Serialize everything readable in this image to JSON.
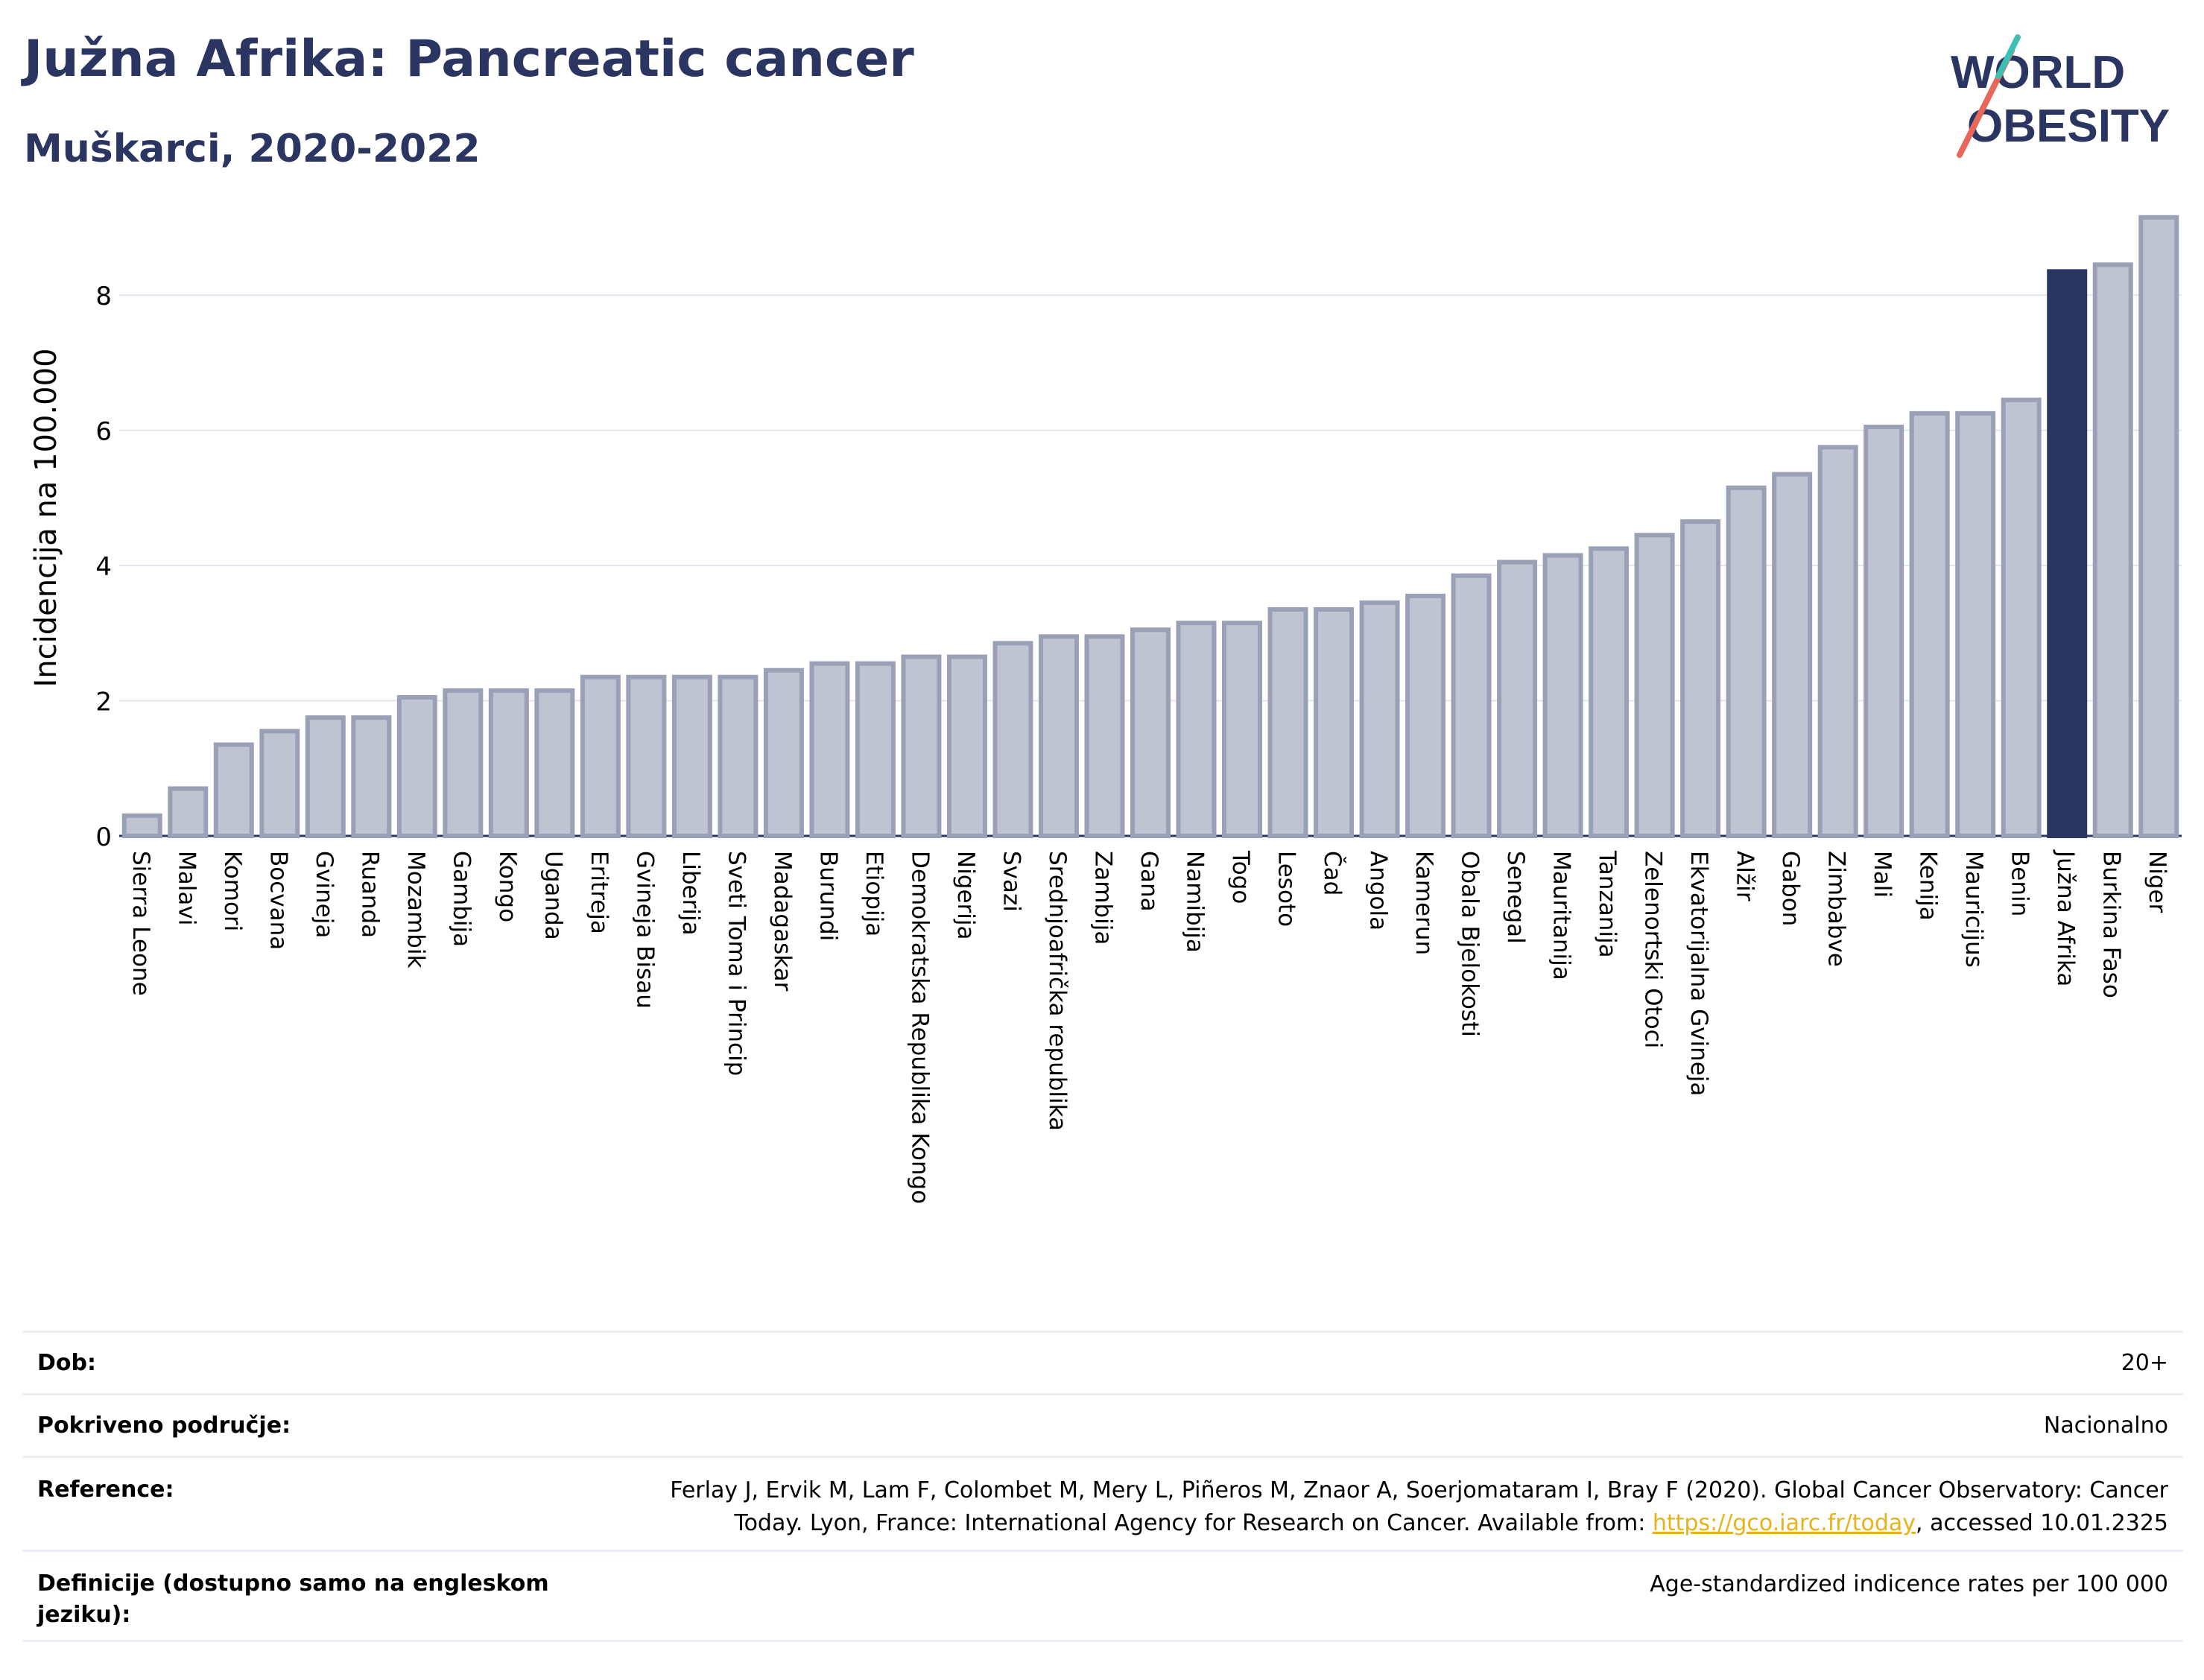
{
  "header": {
    "title": "Južna Afrika: Pancreatic cancer",
    "subtitle": "Muškarci, 2020-2022"
  },
  "logo": {
    "line1": "WORLD",
    "line2": "OBESITY"
  },
  "colors": {
    "bar": "#bfc3d2",
    "bar_stroke": "#9aa0b6",
    "highlight": "#2b3561",
    "text": "#2b3561"
  },
  "chart_data": {
    "type": "bar",
    "ylabel": "Incidencija na 100.000",
    "ylim": [
      0,
      9.5
    ],
    "yticks": [
      0,
      2,
      4,
      6,
      8
    ],
    "highlight": "Južna Afrika",
    "categories": [
      "Sierra Leone",
      "Malavi",
      "Komori",
      "Bocvana",
      "Gvineja",
      "Ruanda",
      "Mozambik",
      "Gambija",
      "Kongo",
      "Uganda",
      "Eritreja",
      "Gvineja Bisau",
      "Liberija",
      "Sveti Toma i Princip",
      "Madagaskar",
      "Burundi",
      "Etiopija",
      "Demokratska Republika Kongo",
      "Nigerija",
      "Svazi",
      "Srednjoafrička republika",
      "Zambija",
      "Gana",
      "Namibija",
      "Togo",
      "Lesoto",
      "Čad",
      "Angola",
      "Kamerun",
      "Obala Bjelokosti",
      "Senegal",
      "Mauritanija",
      "Tanzanija",
      "Zelenortski Otoci",
      "Ekvatorijalna Gvineja",
      "Alžir",
      "Gabon",
      "Zimbabve",
      "Mali",
      "Kenija",
      "Mauricijus",
      "Benin",
      "Južna Afrika",
      "Burkina Faso",
      "Niger"
    ],
    "values": [
      0.3,
      0.7,
      1.35,
      1.55,
      1.75,
      1.75,
      2.05,
      2.15,
      2.15,
      2.15,
      2.35,
      2.35,
      2.35,
      2.35,
      2.45,
      2.55,
      2.55,
      2.65,
      2.65,
      2.85,
      2.95,
      2.95,
      3.05,
      3.15,
      3.15,
      3.35,
      3.35,
      3.45,
      3.55,
      3.85,
      4.05,
      4.15,
      4.25,
      4.45,
      4.65,
      5.15,
      5.35,
      5.75,
      6.05,
      6.25,
      6.25,
      6.45,
      8.35,
      8.45,
      9.15
    ]
  },
  "info": {
    "rows": [
      {
        "key": "Dob:",
        "value": "20+"
      },
      {
        "key": "Pokriveno područje:",
        "value": "Nacionalno"
      },
      {
        "key": "Reference:",
        "value_line1": "Ferlay J, Ervik M, Lam F, Colombet M, Mery L, Piñeros M, Znaor A, Soerjomataram I, Bray F (2020). Global Cancer Observatory: Cancer",
        "value_line2_pre": "Today. Lyon, France: International Agency for Research on Cancer. Available from: ",
        "link": "https://gco.iarc.fr/today",
        "value_line2_post": ", accessed 10.01.2325"
      },
      {
        "key": "Definicije (dostupno samo na engleskom jeziku):",
        "value": "Age-standardized indicence rates per 100 000"
      }
    ]
  }
}
